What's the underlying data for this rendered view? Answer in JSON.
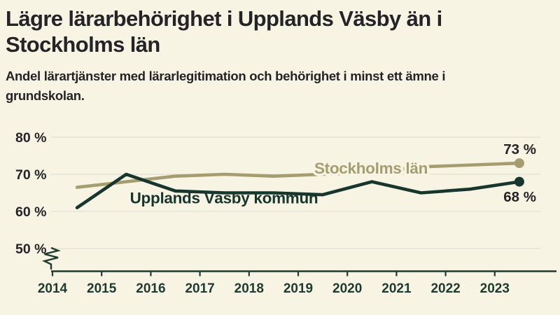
{
  "header": {
    "title": "Lägre lärarbehörighet i Upplands Väsby än i Stockholms län",
    "title_lines": [
      "Lägre lärarbehörighet i Upplands Väsby än i",
      "Stockholms län"
    ],
    "subtitle": "Andel lärartjänster med lärarlegitimation och behörighet i minst ett ämne i grundskolan.",
    "subtitle_lines": [
      "Andel lärartjänster med lärarlegitimation och behörighet i minst ett ämne i",
      "grundskolan."
    ]
  },
  "colors": {
    "background": "#f8f4e3",
    "ink": "#242428",
    "grid": "#e4e1d7",
    "axis": "#1e3a31"
  },
  "chart_data": {
    "type": "line",
    "title": "Lägre lärarbehörighet i Upplands Väsby än i Stockholms län",
    "x": [
      2014.5,
      2015.5,
      2016.5,
      2017.5,
      2018.5,
      2019.5,
      2020.5,
      2021.5,
      2022.5,
      2023.5
    ],
    "x_tick_labels": [
      "2014",
      "2015",
      "2016",
      "2017",
      "2018",
      "2019",
      "2020",
      "2021",
      "2022",
      "2023"
    ],
    "y_ticks": [
      80,
      70,
      60,
      50
    ],
    "y_tick_labels": [
      "80 %",
      "70 %",
      "60 %",
      "50 %"
    ],
    "ylim": [
      50,
      80
    ],
    "y_axis_break": true,
    "grid": "horizontal",
    "legend_position": "inline-labels",
    "series": [
      {
        "name": "Stockholms län",
        "color": "#a59d6f",
        "values": [
          66.5,
          68,
          69.5,
          70,
          69.5,
          70,
          70.5,
          72,
          72.5,
          73
        ],
        "end_label": "73 %"
      },
      {
        "name": "Upplands Väsby kommun",
        "color": "#17362d",
        "values": [
          61,
          70,
          65.5,
          65,
          65,
          64.5,
          68,
          65,
          66,
          68
        ],
        "end_label": "68 %"
      }
    ]
  }
}
